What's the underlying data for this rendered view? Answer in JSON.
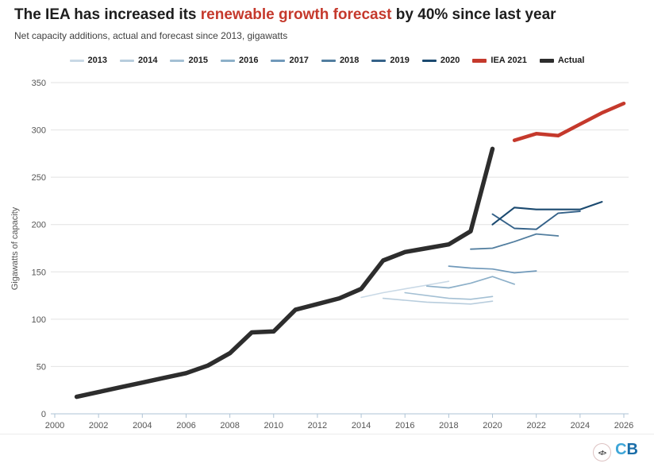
{
  "header": {
    "title_prefix": "The IEA has increased its ",
    "title_highlight": "renewable growth forecast",
    "title_suffix": " by 40% since last year",
    "subtitle": "Net capacity additions, actual and forecast since 2013, gigawatts"
  },
  "chart_data": {
    "type": "line",
    "title": "The IEA has increased its renewable growth forecast by 40% since last year",
    "subtitle": "Net capacity additions, actual and forecast since 2013, gigawatts",
    "xlabel": "",
    "ylabel": "Gigawatts of capacity",
    "xlim": [
      2000,
      2026.6
    ],
    "ylim": [
      0,
      350
    ],
    "x_ticks": [
      2000,
      2002,
      2004,
      2006,
      2008,
      2010,
      2012,
      2014,
      2016,
      2018,
      2020,
      2022,
      2024,
      2026
    ],
    "y_ticks": [
      0,
      50,
      100,
      150,
      200,
      250,
      300,
      350
    ],
    "grid": "horizontal",
    "legend_position": "top",
    "series": [
      {
        "name": "2013",
        "color": "#c9d9e6",
        "width": 1.6,
        "swatch_h": 3,
        "start_year": 2014,
        "values": [
          123,
          128,
          132,
          136,
          140
        ]
      },
      {
        "name": "2014",
        "color": "#b8cddd",
        "width": 1.6,
        "swatch_h": 3,
        "start_year": 2015,
        "values": [
          122,
          120,
          118,
          117,
          116,
          119
        ]
      },
      {
        "name": "2015",
        "color": "#a4c0d4",
        "width": 1.6,
        "swatch_h": 3,
        "start_year": 2016,
        "values": [
          128,
          125,
          122,
          121,
          124
        ]
      },
      {
        "name": "2016",
        "color": "#8db0c9",
        "width": 1.7,
        "swatch_h": 3,
        "start_year": 2017,
        "values": [
          135,
          133,
          138,
          145,
          137
        ]
      },
      {
        "name": "2017",
        "color": "#7099ba",
        "width": 1.7,
        "swatch_h": 3,
        "start_year": 2018,
        "values": [
          156,
          154,
          153,
          149,
          151
        ]
      },
      {
        "name": "2018",
        "color": "#527e9f",
        "width": 1.8,
        "swatch_h": 3,
        "start_year": 2019,
        "values": [
          174,
          175,
          182,
          190,
          188
        ]
      },
      {
        "name": "2019",
        "color": "#356289",
        "width": 1.9,
        "swatch_h": 3,
        "start_year": 2020,
        "values": [
          211,
          196,
          195,
          212,
          214
        ]
      },
      {
        "name": "2020",
        "color": "#1b4a70",
        "width": 2.1,
        "swatch_h": 3,
        "start_year": 2020,
        "values": [
          200,
          218,
          216,
          216,
          216,
          224
        ]
      },
      {
        "name": "IEA 2021",
        "color": "#c5392c",
        "width": 4.5,
        "swatch_h": 5,
        "start_year": 2021,
        "values": [
          289,
          296,
          294,
          306,
          318,
          328
        ]
      },
      {
        "name": "Actual",
        "color": "#2d2d2d",
        "width": 5.5,
        "swatch_h": 5,
        "start_year": 2001,
        "values": [
          18,
          23,
          28,
          33,
          38,
          43,
          51,
          64,
          86,
          87,
          110,
          116,
          122,
          132,
          162,
          171,
          175,
          179,
          193,
          280
        ]
      }
    ]
  },
  "axis_style": {
    "axis_color": "#aec3d5",
    "grid_color": "#e2e2e2",
    "tick_label_color": "#555555"
  },
  "footer": {
    "icon_glyph": "</>",
    "logo_c": "C",
    "logo_b": "B"
  }
}
